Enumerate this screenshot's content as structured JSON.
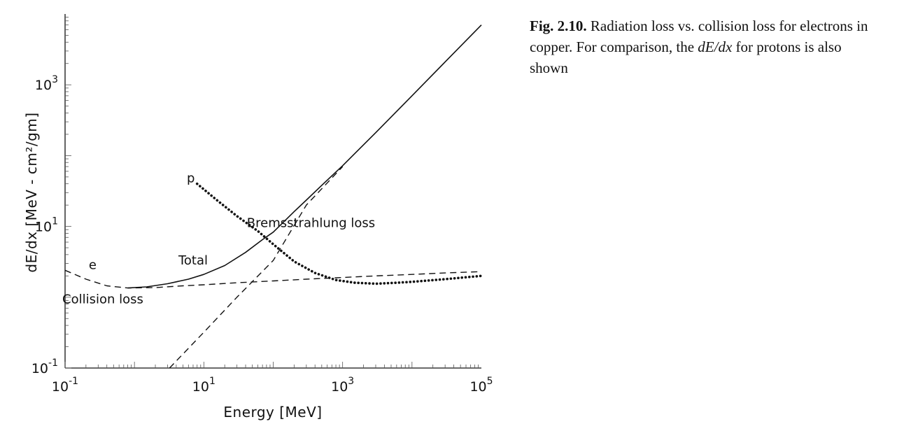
{
  "chart_data": {
    "type": "line",
    "x_scale": "log",
    "y_scale": "log",
    "xlim": [
      0.1,
      100000
    ],
    "ylim": [
      0.1,
      10000
    ],
    "xlabel": "Energy [MeV]",
    "ylabel": "dE/dx [MeV - cm²/gm]",
    "x_ticks": [
      {
        "value": 0.1,
        "base": "10",
        "exp": "-1"
      },
      {
        "value": 10,
        "base": "10",
        "exp": "1"
      },
      {
        "value": 1000,
        "base": "10",
        "exp": "3"
      },
      {
        "value": 100000,
        "base": "10",
        "exp": "5"
      }
    ],
    "y_ticks": [
      {
        "value": 0.1,
        "base": "10",
        "exp": "-1"
      },
      {
        "value": 10,
        "base": "10",
        "exp": "1"
      },
      {
        "value": 1000,
        "base": "10",
        "exp": "3"
      }
    ],
    "series": [
      {
        "name": "Total",
        "style": "solid",
        "x": [
          0.8,
          1.5,
          3,
          6,
          10,
          20,
          40,
          70,
          100,
          200,
          300,
          500,
          1000,
          3000,
          10000,
          30000,
          100000
        ],
        "y": [
          1.35,
          1.4,
          1.55,
          1.8,
          2.1,
          2.8,
          4.3,
          6.5,
          8.3,
          16.2,
          23.5,
          38,
          72,
          211,
          700,
          2100,
          7000
        ]
      },
      {
        "name": "Collision loss",
        "style": "dashed",
        "x": [
          0.1,
          0.2,
          0.4,
          0.8,
          2,
          5,
          10,
          30,
          100,
          300,
          1000,
          3000,
          10000,
          30000,
          100000
        ],
        "y": [
          2.4,
          1.8,
          1.45,
          1.35,
          1.37,
          1.45,
          1.5,
          1.6,
          1.7,
          1.8,
          1.9,
          2.0,
          2.1,
          2.2,
          2.3
        ]
      },
      {
        "name": "Bremsstrahlung loss",
        "style": "dashed",
        "x": [
          3.2,
          10,
          30,
          100,
          300,
          1000
        ],
        "y": [
          0.1,
          0.32,
          1.0,
          3.3,
          20,
          70
        ]
      },
      {
        "name": "p",
        "style": "dotted",
        "x": [
          8,
          15,
          30,
          60,
          100,
          200,
          400,
          800,
          1500,
          3000,
          6000,
          10000,
          30000,
          100000
        ],
        "y": [
          40,
          24,
          14,
          8.6,
          5.6,
          3.2,
          2.2,
          1.75,
          1.6,
          1.55,
          1.6,
          1.65,
          1.8,
          2.0
        ]
      }
    ],
    "annotations": [
      {
        "text": "e",
        "x": 0.25,
        "y": 2.5
      },
      {
        "text": "p",
        "x": 6.5,
        "y": 42
      },
      {
        "text": "Total",
        "x": 7,
        "y": 2.9
      },
      {
        "text": "Bremsstrahlung loss",
        "x": 350,
        "y": 9.8
      },
      {
        "text": "Collision loss",
        "x": 0.35,
        "y": 0.82
      }
    ]
  },
  "caption": {
    "fig_label": "Fig. 2.10.",
    "text_1": " Radiation loss vs. collision loss for electrons in copper. For comparison, the ",
    "math": "dE/dx",
    "text_2": " for protons is also shown"
  }
}
